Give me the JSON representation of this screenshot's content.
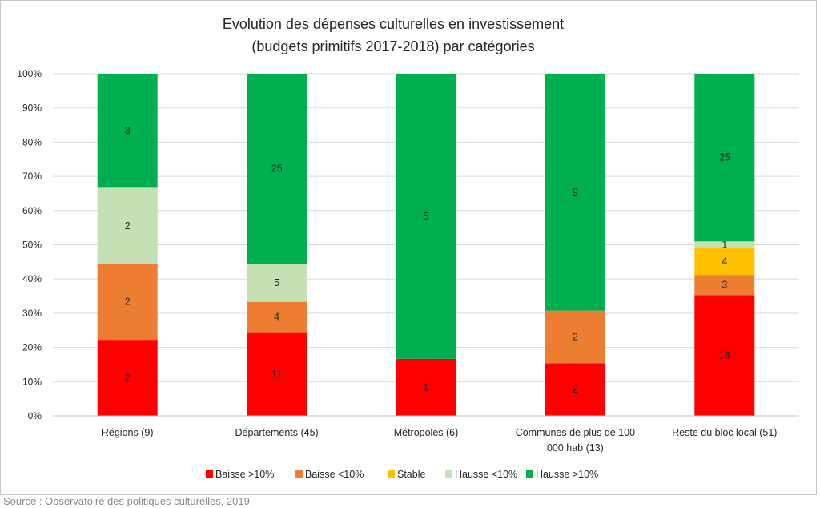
{
  "chart_data": {
    "type": "bar",
    "stacked": true,
    "normalized": true,
    "title": [
      "Evolution des dépenses culturelles en investissement",
      "(budgets primitifs 2017-2018) par catégories"
    ],
    "xlabel": "",
    "ylabel": "",
    "ylim": [
      0,
      100
    ],
    "yticks": [
      "0%",
      "10%",
      "20%",
      "30%",
      "40%",
      "50%",
      "60%",
      "70%",
      "80%",
      "90%",
      "100%"
    ],
    "categories": [
      [
        "Régions (9)"
      ],
      [
        "Départements (45)"
      ],
      [
        "Métropoles (6)"
      ],
      [
        "Communes de plus de 100",
        "000 hab (13)"
      ],
      [
        "Reste du bloc local (51)"
      ]
    ],
    "series": [
      {
        "name": "Baisse >10%",
        "color": "#ff0000",
        "values": [
          2,
          11,
          1,
          2,
          18
        ]
      },
      {
        "name": "Baisse <10%",
        "color": "#ed7d31",
        "values": [
          2,
          4,
          0,
          2,
          3
        ]
      },
      {
        "name": "Stable",
        "color": "#ffc000",
        "values": [
          0,
          0,
          0,
          0,
          4
        ]
      },
      {
        "name": "Hausse <10%",
        "color": "#c5e0b4",
        "values": [
          2,
          5,
          0,
          0,
          1
        ]
      },
      {
        "name": "Hausse >10%",
        "color": "#00b050",
        "values": [
          3,
          25,
          5,
          9,
          25
        ]
      }
    ],
    "grid": true,
    "legend_position": "bottom"
  },
  "source": "Source : Observatoire des politiques culturelles, 2019."
}
